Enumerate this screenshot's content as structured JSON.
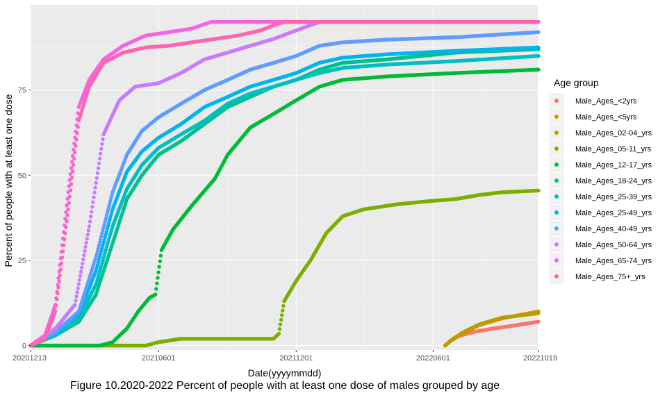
{
  "chart_data": {
    "type": "scatter",
    "caption": "Figure 10.2020-2022 Percent of people with at least one dose of males grouped by age",
    "xlabel": "Date(yyyymmdd)",
    "ylabel": "Percent of people with at least one dose",
    "x_ticks": [
      "20201213",
      "20210601",
      "20211201",
      "20220601",
      "20221019"
    ],
    "x_range": [
      "2020-12-13",
      "2022-10-19"
    ],
    "y_ticks": [
      0,
      25,
      50,
      75
    ],
    "ylim": [
      -1.3,
      100
    ],
    "grid": true,
    "legend": {
      "title": "Age group",
      "position": "right"
    },
    "series": [
      {
        "name": "Male_Ages_<2yrs",
        "color": "#F8766D",
        "points": [
          [
            "2022-06-17",
            0
          ],
          [
            "2022-06-25",
            1.5
          ],
          [
            "2022-07-05",
            2.8
          ],
          [
            "2022-07-25",
            4
          ],
          [
            "2022-08-20",
            5
          ],
          [
            "2022-09-20",
            6
          ],
          [
            "2022-10-19",
            7
          ]
        ]
      },
      {
        "name": "Male_Ages_<5yrs",
        "color": "#DE8C00",
        "points": [
          [
            "2022-06-17",
            0
          ],
          [
            "2022-06-25",
            1.5
          ],
          [
            "2022-07-10",
            3.5
          ],
          [
            "2022-08-01",
            6
          ],
          [
            "2022-09-01",
            8
          ],
          [
            "2022-10-19",
            10
          ]
        ]
      },
      {
        "name": "Male_Ages_02-04_yrs",
        "color": "#B79F00",
        "points": [
          [
            "2022-06-17",
            0
          ],
          [
            "2022-06-25",
            1.6
          ],
          [
            "2022-07-10",
            3.8
          ],
          [
            "2022-08-01",
            6.2
          ],
          [
            "2022-09-01",
            8.2
          ],
          [
            "2022-10-19",
            9.5
          ]
        ]
      },
      {
        "name": "Male_Ages_05-11_yrs",
        "color": "#7CAE00",
        "points": [
          [
            "2020-12-13",
            0
          ],
          [
            "2021-05-15",
            0
          ],
          [
            "2021-06-01",
            1
          ],
          [
            "2021-07-01",
            2
          ],
          [
            "2021-11-01",
            2
          ],
          [
            "2021-11-08",
            3.5
          ],
          [
            "2021-11-15",
            13
          ],
          [
            "2021-12-01",
            19
          ],
          [
            "2021-12-20",
            25
          ],
          [
            "2022-01-10",
            33
          ],
          [
            "2022-02-01",
            38
          ],
          [
            "2022-03-01",
            40
          ],
          [
            "2022-04-15",
            41.5
          ],
          [
            "2022-06-01",
            42.5
          ],
          [
            "2022-07-01",
            43
          ],
          [
            "2022-08-01",
            44.2
          ],
          [
            "2022-09-01",
            45
          ],
          [
            "2022-10-19",
            45.5
          ]
        ]
      },
      {
        "name": "Male_Ages_12-17_yrs",
        "color": "#00BA38",
        "points": [
          [
            "2020-12-13",
            0
          ],
          [
            "2021-03-15",
            0
          ],
          [
            "2021-04-01",
            1
          ],
          [
            "2021-04-20",
            5
          ],
          [
            "2021-05-05",
            10
          ],
          [
            "2021-05-20",
            14
          ],
          [
            "2021-05-28",
            15
          ],
          [
            "2021-06-05",
            28
          ],
          [
            "2021-06-20",
            34
          ],
          [
            "2021-07-15",
            41
          ],
          [
            "2021-08-15",
            49
          ],
          [
            "2021-09-01",
            56
          ],
          [
            "2021-10-01",
            64
          ],
          [
            "2021-11-01",
            68
          ],
          [
            "2021-12-01",
            72
          ],
          [
            "2022-01-01",
            76
          ],
          [
            "2022-02-01",
            78
          ],
          [
            "2022-04-01",
            79
          ],
          [
            "2022-07-01",
            80
          ],
          [
            "2022-10-19",
            81
          ]
        ]
      },
      {
        "name": "Male_Ages_18-24_yrs",
        "color": "#00C08B",
        "points": [
          [
            "2020-12-13",
            0
          ],
          [
            "2021-01-15",
            3
          ],
          [
            "2021-02-15",
            7
          ],
          [
            "2021-03-10",
            15
          ],
          [
            "2021-04-01",
            30
          ],
          [
            "2021-04-20",
            43
          ],
          [
            "2021-05-10",
            50
          ],
          [
            "2021-06-01",
            56
          ],
          [
            "2021-07-01",
            60
          ],
          [
            "2021-08-01",
            65
          ],
          [
            "2021-09-01",
            70
          ],
          [
            "2021-10-01",
            73
          ],
          [
            "2021-11-01",
            76
          ],
          [
            "2021-12-01",
            78
          ],
          [
            "2022-01-01",
            81
          ],
          [
            "2022-02-01",
            83
          ],
          [
            "2022-04-01",
            84
          ],
          [
            "2022-07-01",
            86
          ],
          [
            "2022-10-19",
            87
          ]
        ]
      },
      {
        "name": "Male_Ages_25-39_yrs",
        "color": "#00BFC4",
        "points": [
          [
            "2020-12-13",
            0
          ],
          [
            "2021-01-15",
            3
          ],
          [
            "2021-02-15",
            8
          ],
          [
            "2021-03-10",
            18
          ],
          [
            "2021-04-01",
            35
          ],
          [
            "2021-04-20",
            46
          ],
          [
            "2021-05-10",
            53
          ],
          [
            "2021-06-01",
            58
          ],
          [
            "2021-07-01",
            62
          ],
          [
            "2021-08-01",
            66
          ],
          [
            "2021-09-01",
            71
          ],
          [
            "2021-10-01",
            74
          ],
          [
            "2021-11-01",
            76
          ],
          [
            "2021-12-01",
            78
          ],
          [
            "2022-01-01",
            80
          ],
          [
            "2022-02-01",
            81.5
          ],
          [
            "2022-04-01",
            82.5
          ],
          [
            "2022-07-01",
            83.5
          ],
          [
            "2022-10-19",
            85
          ]
        ]
      },
      {
        "name": "Male_Ages_25-49_yrs",
        "color": "#00B4F0",
        "points": [
          [
            "2020-12-13",
            0
          ],
          [
            "2021-01-15",
            4
          ],
          [
            "2021-02-15",
            9
          ],
          [
            "2021-03-10",
            22
          ],
          [
            "2021-04-01",
            40
          ],
          [
            "2021-04-20",
            51
          ],
          [
            "2021-05-10",
            57
          ],
          [
            "2021-06-01",
            61
          ],
          [
            "2021-07-01",
            65
          ],
          [
            "2021-08-01",
            70
          ],
          [
            "2021-09-01",
            73
          ],
          [
            "2021-10-01",
            76
          ],
          [
            "2021-11-01",
            78
          ],
          [
            "2021-12-01",
            80
          ],
          [
            "2022-01-01",
            83
          ],
          [
            "2022-02-01",
            84.5
          ],
          [
            "2022-04-01",
            85.5
          ],
          [
            "2022-07-01",
            86.5
          ],
          [
            "2022-10-19",
            87.5
          ]
        ]
      },
      {
        "name": "Male_Ages_40-49_yrs",
        "color": "#619CFF",
        "points": [
          [
            "2020-12-13",
            0
          ],
          [
            "2021-01-15",
            4
          ],
          [
            "2021-02-15",
            10
          ],
          [
            "2021-03-10",
            26
          ],
          [
            "2021-04-01",
            45
          ],
          [
            "2021-04-20",
            56
          ],
          [
            "2021-05-10",
            63
          ],
          [
            "2021-06-01",
            67
          ],
          [
            "2021-07-01",
            71
          ],
          [
            "2021-08-01",
            75
          ],
          [
            "2021-09-01",
            78
          ],
          [
            "2021-10-01",
            81
          ],
          [
            "2021-11-01",
            83
          ],
          [
            "2021-12-01",
            85
          ],
          [
            "2022-01-01",
            88
          ],
          [
            "2022-02-01",
            89
          ],
          [
            "2022-04-01",
            89.8
          ],
          [
            "2022-07-01",
            90.5
          ],
          [
            "2022-10-19",
            92
          ]
        ]
      },
      {
        "name": "Male_Ages_50-64_yrs",
        "color": "#C77CFF",
        "points": [
          [
            "2020-12-13",
            0
          ],
          [
            "2021-01-15",
            5
          ],
          [
            "2021-02-10",
            12
          ],
          [
            "2021-03-01",
            35
          ],
          [
            "2021-03-20",
            62
          ],
          [
            "2021-04-10",
            72
          ],
          [
            "2021-05-01",
            76
          ],
          [
            "2021-06-01",
            77
          ],
          [
            "2021-07-01",
            80
          ],
          [
            "2021-08-01",
            84
          ],
          [
            "2021-09-01",
            86
          ],
          [
            "2021-10-01",
            88
          ],
          [
            "2021-11-01",
            90
          ],
          [
            "2021-12-01",
            92.5
          ],
          [
            "2022-01-01",
            95
          ],
          [
            "2022-10-19",
            95
          ]
        ]
      },
      {
        "name": "Male_Ages_65-74_yrs",
        "color": "#F564E3",
        "points": [
          [
            "2020-12-13",
            0
          ],
          [
            "2021-01-01",
            3
          ],
          [
            "2021-01-15",
            12
          ],
          [
            "2021-02-01",
            45
          ],
          [
            "2021-02-15",
            70
          ],
          [
            "2021-03-01",
            78
          ],
          [
            "2021-03-20",
            84
          ],
          [
            "2021-04-15",
            88
          ],
          [
            "2021-05-15",
            91
          ],
          [
            "2021-06-15",
            92
          ],
          [
            "2021-07-15",
            93
          ],
          [
            "2021-08-10",
            95
          ],
          [
            "2022-10-19",
            95
          ]
        ]
      },
      {
        "name": "Male_Ages_75+_yrs",
        "color": "#FF64B0",
        "points": [
          [
            "2020-12-13",
            0
          ],
          [
            "2021-01-01",
            2
          ],
          [
            "2021-01-15",
            10
          ],
          [
            "2021-02-01",
            40
          ],
          [
            "2021-02-15",
            66
          ],
          [
            "2021-03-01",
            76
          ],
          [
            "2021-03-20",
            83
          ],
          [
            "2021-04-15",
            86
          ],
          [
            "2021-05-15",
            87.5
          ],
          [
            "2021-06-15",
            88
          ],
          [
            "2021-07-15",
            89
          ],
          [
            "2021-08-15",
            90
          ],
          [
            "2021-09-15",
            91
          ],
          [
            "2021-10-15",
            92.5
          ],
          [
            "2021-11-01",
            94
          ],
          [
            "2021-11-15",
            95
          ],
          [
            "2022-10-19",
            95
          ]
        ]
      }
    ]
  }
}
